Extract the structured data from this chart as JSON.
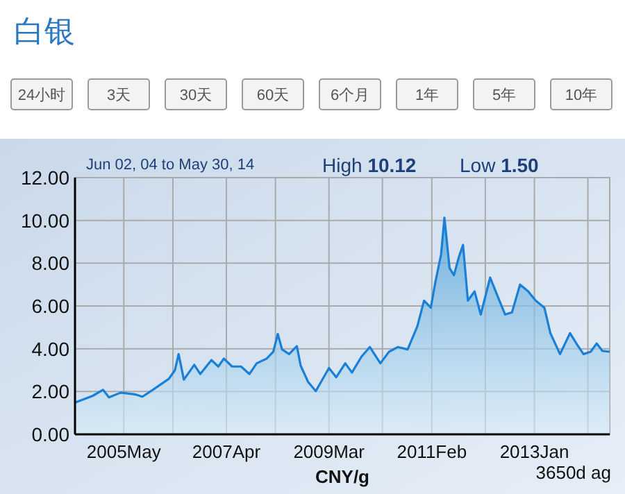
{
  "chart_data": [
    {
      "type": "other",
      "title": "白银",
      "annotations": [
        "24小时",
        "3天",
        "30天",
        "60天",
        "6个月",
        "1年",
        "5年",
        "10年"
      ]
    },
    {
      "type": "area",
      "subtitle": "Jun 02, 04 to May 30, 14",
      "xlabel": "CNY/g",
      "annotations": [
        "High 10.12",
        "Low 1.50",
        "3650d ag"
      ],
      "x": [
        "2004-06-02",
        "2004-10-01",
        "2004-12-10",
        "2005-01-20",
        "2005-04-10",
        "2005-07-15",
        "2005-09-05",
        "2005-11-15",
        "2006-03-05",
        "2006-04-15",
        "2006-05-10",
        "2006-06-15",
        "2006-08-25",
        "2006-10-05",
        "2006-12-20",
        "2007-02-05",
        "2007-03-15",
        "2007-05-10",
        "2007-07-10",
        "2007-09-05",
        "2007-10-25",
        "2008-01-01",
        "2008-02-15",
        "2008-03-17",
        "2008-04-15",
        "2008-06-02",
        "2008-07-25",
        "2008-08-20",
        "2008-10-10",
        "2008-12-01",
        "2009-03-01",
        "2009-04-20",
        "2009-06-20",
        "2009-08-05",
        "2009-10-10",
        "2009-12-05",
        "2010-02-15",
        "2010-04-15",
        "2010-06-15",
        "2010-08-20",
        "2010-10-25",
        "2010-12-10",
        "2011-01-25",
        "2011-02-25",
        "2011-04-05",
        "2011-04-28",
        "2011-06-02",
        "2011-07-02",
        "2011-08-05",
        "2011-09-02",
        "2011-10-05",
        "2011-11-20",
        "2012-01-01",
        "2012-03-05",
        "2012-04-25",
        "2012-06-15",
        "2012-08-01",
        "2012-09-25",
        "2012-11-20",
        "2013-01-10",
        "2013-03-10",
        "2013-04-20",
        "2013-06-25",
        "2013-09-01",
        "2013-10-20",
        "2013-12-02",
        "2014-01-20",
        "2014-03-02",
        "2014-04-10",
        "2014-05-30"
      ],
      "series": [
        {
          "color": "#1a7fd6",
          "values": [
            1.48,
            1.8,
            2.08,
            1.73,
            1.95,
            1.87,
            1.76,
            2.08,
            2.6,
            3.0,
            3.75,
            2.56,
            3.25,
            2.82,
            3.47,
            3.17,
            3.54,
            3.17,
            3.17,
            2.82,
            3.32,
            3.54,
            3.86,
            4.69,
            3.97,
            3.75,
            4.12,
            3.21,
            2.45,
            2.02,
            3.1,
            2.67,
            3.32,
            2.89,
            3.64,
            4.08,
            3.32,
            3.86,
            4.08,
            3.97,
            5.05,
            6.25,
            5.92,
            7.11,
            8.4,
            10.12,
            7.77,
            7.44,
            8.3,
            8.85,
            6.25,
            6.68,
            5.6,
            7.33,
            6.46,
            5.6,
            5.7,
            7.0,
            6.68,
            6.25,
            5.92,
            4.73,
            3.75,
            4.73,
            4.19,
            3.75,
            3.86,
            4.25,
            3.9,
            3.86
          ]
        }
      ],
      "xlim": [
        "2004-06-02",
        "2014-05-30"
      ],
      "xticks": [
        {
          "value": "2005-05",
          "label": "2005May"
        },
        {
          "value": "2006-04",
          "label": null
        },
        {
          "value": "2007-04",
          "label": "2007Apr"
        },
        {
          "value": "2008-03",
          "label": null
        },
        {
          "value": "2009-03",
          "label": "2009Mar"
        },
        {
          "value": "2010-03",
          "label": null
        },
        {
          "value": "2011-02",
          "label": "2011Feb"
        },
        {
          "value": "2012-02",
          "label": null
        },
        {
          "value": "2013-01",
          "label": "2013Jan"
        },
        {
          "value": "2014-01",
          "label": null
        }
      ],
      "ylim": [
        0,
        12
      ],
      "yticks": [
        {
          "value": 0,
          "label": "0.00"
        },
        {
          "value": 2,
          "label": "2.00"
        },
        {
          "value": 4,
          "label": "4.00"
        },
        {
          "value": 6,
          "label": "6.00"
        },
        {
          "value": 8,
          "label": "8.00"
        },
        {
          "value": 10,
          "label": "10.00"
        },
        {
          "value": 12,
          "label": "12.00"
        }
      ],
      "grid": true
    }
  ]
}
